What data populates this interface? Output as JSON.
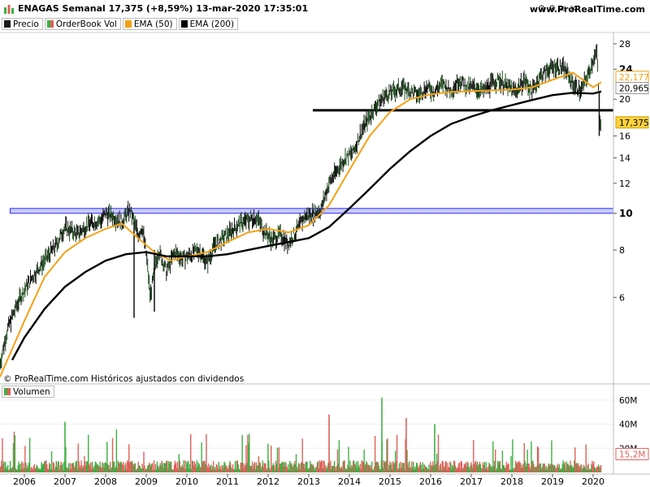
{
  "header": {
    "title": "ENAGAS Semanal 17,375 (+8,59%) 13-mar-2020 17:35:01",
    "site": "www.ProRealTime.com"
  },
  "legend": [
    {
      "label": "Precio",
      "color": "#1a1a1a"
    },
    {
      "label": "OrderBook Vol",
      "color": "#3cb043"
    },
    {
      "label": "EMA (50)",
      "color": "#f5a014"
    },
    {
      "label": "EMA (200)",
      "color": "#000000"
    }
  ],
  "copyright": "© ProRealTime.com Históricos ajustados con dividendos",
  "volume_legend": {
    "label": "Volumen",
    "color": "#3cb043"
  },
  "price_labels": {
    "ema50": "22,177",
    "ema200": "20,965",
    "last": "17,375"
  },
  "volume_last_label": "15,2M",
  "chart_data": [
    {
      "type": "line",
      "title": "ENAGAS Semanal",
      "y_scale": "log",
      "ylim": [
        3.6,
        30
      ],
      "xlim": [
        2005.4,
        2020.5
      ],
      "x_ticks": [
        "2006",
        "2007",
        "2008",
        "2009",
        "2010",
        "2011",
        "2012",
        "2013",
        "2014",
        "2015",
        "2016",
        "2017",
        "2018",
        "2019",
        "2020"
      ],
      "y_ticks": [
        "6",
        "8",
        "10",
        "12",
        "14",
        "16",
        "20",
        "24",
        "28"
      ],
      "y_ticks_bold": [
        "10",
        "24"
      ],
      "grid": false,
      "series": [
        {
          "name": "Precio",
          "color": "#1a1a1a",
          "x": [
            2005.4,
            2005.6,
            2005.9,
            2006.2,
            2006.5,
            2006.8,
            2007.0,
            2007.3,
            2007.6,
            2007.9,
            2008.0,
            2008.2,
            2008.4,
            2008.6,
            2008.8,
            2008.9,
            2009.0,
            2009.1,
            2009.3,
            2009.5,
            2009.7,
            2009.9,
            2010.1,
            2010.3,
            2010.5,
            2010.7,
            2010.9,
            2011.1,
            2011.3,
            2011.5,
            2011.7,
            2011.9,
            2012.1,
            2012.3,
            2012.5,
            2012.7,
            2012.9,
            2013.1,
            2013.3,
            2013.5,
            2013.7,
            2013.9,
            2014.1,
            2014.3,
            2014.5,
            2014.7,
            2014.9,
            2015.1,
            2015.3,
            2015.5,
            2015.7,
            2015.9,
            2016.1,
            2016.3,
            2016.5,
            2016.7,
            2016.9,
            2017.1,
            2017.3,
            2017.5,
            2017.7,
            2017.9,
            2018.1,
            2018.3,
            2018.5,
            2018.7,
            2018.9,
            2019.1,
            2019.3,
            2019.5,
            2019.7,
            2019.9,
            2020.0,
            2020.1,
            2020.15,
            2020.2
          ],
          "y": [
            4.0,
            5.0,
            6.0,
            6.8,
            7.5,
            8.3,
            9.2,
            8.8,
            9.4,
            9.6,
            10.0,
            9.8,
            9.5,
            10.2,
            8.8,
            9.2,
            7.8,
            6.0,
            8.0,
            7.0,
            7.9,
            7.6,
            7.8,
            8.0,
            7.4,
            8.3,
            8.6,
            9.0,
            9.4,
            9.6,
            9.8,
            9.0,
            8.5,
            8.8,
            8.3,
            9.0,
            9.8,
            10.0,
            10.2,
            12.0,
            13.0,
            14.0,
            14.5,
            16.5,
            18.0,
            19.5,
            20.5,
            21.0,
            21.5,
            21.0,
            20.5,
            21.5,
            21.0,
            22.0,
            21.0,
            22.5,
            21.5,
            21.5,
            21.0,
            22.0,
            22.5,
            21.5,
            21.0,
            22.5,
            21.0,
            23.0,
            24.0,
            24.5,
            24.0,
            22.0,
            21.0,
            23.5,
            25.5,
            26.5,
            18.0,
            17.375
          ]
        },
        {
          "name": "EMA (50)",
          "color": "#f5a014",
          "x": [
            2005.4,
            2006.0,
            2006.5,
            2007.0,
            2007.5,
            2008.0,
            2008.4,
            2008.8,
            2009.2,
            2009.6,
            2010.0,
            2010.5,
            2011.0,
            2011.5,
            2012.0,
            2012.5,
            2013.0,
            2013.5,
            2014.0,
            2014.5,
            2015.0,
            2015.5,
            2016.0,
            2016.5,
            2017.0,
            2017.5,
            2018.0,
            2018.5,
            2019.0,
            2019.5,
            2019.8,
            2020.0,
            2020.2
          ],
          "y": [
            3.7,
            5.2,
            6.8,
            7.9,
            8.6,
            9.1,
            9.4,
            8.6,
            7.9,
            7.5,
            7.7,
            7.9,
            8.4,
            8.9,
            9.1,
            8.9,
            9.3,
            10.5,
            13.0,
            16.0,
            18.5,
            20.0,
            20.6,
            20.9,
            21.0,
            21.1,
            21.2,
            21.5,
            22.5,
            23.5,
            22.3,
            21.5,
            22.177
          ]
        },
        {
          "name": "EMA (200)",
          "color": "#000000",
          "x": [
            2005.7,
            2006.0,
            2006.5,
            2007.0,
            2007.5,
            2008.0,
            2008.5,
            2009.0,
            2009.5,
            2010.0,
            2010.5,
            2011.0,
            2011.5,
            2012.0,
            2012.5,
            2013.0,
            2013.5,
            2014.0,
            2014.5,
            2015.0,
            2015.5,
            2016.0,
            2016.5,
            2017.0,
            2017.5,
            2018.0,
            2018.5,
            2019.0,
            2019.5,
            2020.0,
            2020.2
          ],
          "y": [
            4.1,
            4.7,
            5.6,
            6.4,
            7.0,
            7.5,
            7.8,
            7.9,
            7.7,
            7.7,
            7.7,
            7.8,
            8.0,
            8.2,
            8.4,
            8.6,
            9.2,
            10.3,
            11.6,
            13.1,
            14.6,
            16.0,
            17.2,
            18.0,
            18.7,
            19.3,
            19.9,
            20.5,
            20.8,
            20.7,
            20.965
          ]
        }
      ],
      "support_lines": [
        {
          "y_from": 10.0,
          "y_to": 10.3,
          "x_from": 2005.65,
          "x_to": 2020.5,
          "style": "blue-band"
        },
        {
          "y": 18.7,
          "x_from": 2013.1,
          "x_to": 2020.5,
          "style": "black-thick"
        }
      ]
    },
    {
      "type": "bar",
      "title": "Volumen",
      "y_ticks": [
        "20M",
        "40M",
        "60M"
      ],
      "ylim": [
        0,
        70
      ],
      "last_value": 15.2,
      "colors": {
        "up": "#3cb043",
        "down": "#e0605a"
      }
    }
  ]
}
